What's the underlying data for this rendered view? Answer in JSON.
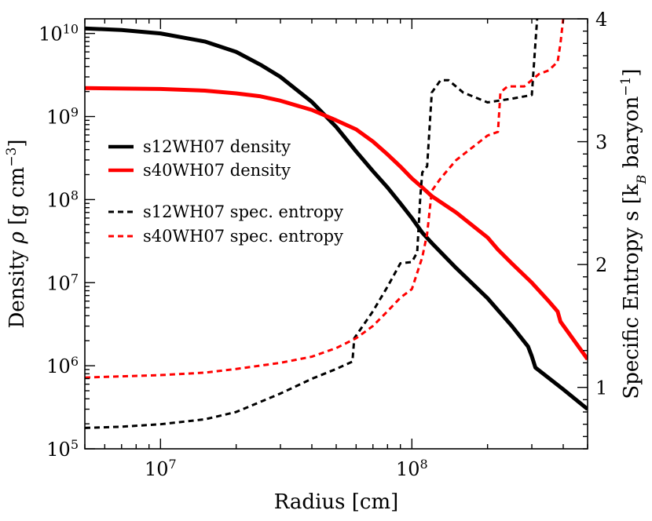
{
  "chart_data": {
    "type": "line",
    "title": "",
    "xlabel": "Radius [cm]",
    "ylabel_left": "Density ρ [g cm⁻³]",
    "ylabel_left_parts": {
      "pre": "Density ",
      "sym": "ρ",
      "mid": " [g cm",
      "exp": "−3",
      "post": "]"
    },
    "ylabel_right": "Specific Entropy s [k_B baryon⁻¹]",
    "ylabel_right_parts": {
      "pre": "Specific Entropy s [k",
      "sub": "B",
      "mid": " baryon",
      "exp": "−1",
      "post": "]"
    },
    "xscale": "log",
    "yscale_left": "log",
    "xlim": [
      5000000,
      500000000
    ],
    "ylim_left": [
      100000,
      15000000000
    ],
    "ylim_right": [
      0.5,
      4.0
    ],
    "x_ticks": [
      {
        "value": 10000000,
        "base": "10",
        "exp": "7"
      },
      {
        "value": 100000000,
        "base": "10",
        "exp": "8"
      }
    ],
    "y_left_ticks": [
      {
        "value": 100000,
        "base": "10",
        "exp": "5"
      },
      {
        "value": 1000000,
        "base": "10",
        "exp": "6"
      },
      {
        "value": 10000000,
        "base": "10",
        "exp": "7"
      },
      {
        "value": 100000000,
        "base": "10",
        "exp": "8"
      },
      {
        "value": 1000000000,
        "base": "10",
        "exp": "9"
      },
      {
        "value": 10000000000,
        "base": "10",
        "exp": "10"
      }
    ],
    "y_right_ticks": [
      {
        "value": 1,
        "label": "1"
      },
      {
        "value": 2,
        "label": "2"
      },
      {
        "value": 3,
        "label": "3"
      },
      {
        "value": 4,
        "label": "4"
      }
    ],
    "legend_position": "center-left",
    "legend": [
      {
        "label": "s12WH07 density",
        "color": "#000000",
        "dash": "solid"
      },
      {
        "label": "s40WH07 density",
        "color": "#ff0000",
        "dash": "solid"
      },
      {
        "label": "s12WH07 spec. entropy",
        "color": "#000000",
        "dash": "dashed"
      },
      {
        "label": "s40WH07 spec. entropy",
        "color": "#ff0000",
        "dash": "dashed"
      }
    ],
    "series": [
      {
        "name": "s12WH07 density",
        "axis": "left",
        "color": "#000000",
        "dash": "solid",
        "x": [
          5000000,
          7000000,
          10000000,
          15000000,
          20000000,
          25000000,
          30000000,
          40000000,
          50000000,
          60000000,
          70000000,
          80000000,
          90000000,
          100000000,
          110000000,
          120000000,
          150000000,
          200000000,
          250000000,
          290000000,
          300000000,
          310000000,
          400000000,
          500000000
        ],
        "y": [
          11500000000,
          11000000000,
          10000000000,
          8000000000,
          6000000000,
          4200000000,
          3000000000,
          1500000000,
          750000000,
          380000000,
          220000000,
          140000000,
          90000000,
          60000000,
          40000000,
          30000000,
          15000000,
          6500000,
          3000000,
          1700000,
          1300000,
          950000,
          520000,
          300000
        ]
      },
      {
        "name": "s40WH07 density",
        "axis": "left",
        "color": "#ff0000",
        "dash": "solid",
        "x": [
          5000000,
          10000000,
          15000000,
          20000000,
          25000000,
          30000000,
          40000000,
          50000000,
          60000000,
          70000000,
          80000000,
          90000000,
          100000000,
          110000000,
          120000000,
          150000000,
          200000000,
          220000000,
          250000000,
          300000000,
          350000000,
          380000000,
          390000000,
          500000000
        ],
        "y": [
          2200000000,
          2150000000,
          2050000000,
          1900000000,
          1750000000,
          1550000000,
          1200000000,
          900000000,
          700000000,
          500000000,
          350000000,
          250000000,
          180000000,
          140000000,
          110000000,
          70000000,
          35000000,
          25000000,
          17000000,
          10000000,
          6000000,
          4500000,
          3400000,
          1200000
        ]
      },
      {
        "name": "s12WH07 spec. entropy",
        "axis": "right",
        "color": "#000000",
        "dash": "dashed",
        "x": [
          5000000,
          7000000,
          10000000,
          15000000,
          20000000,
          30000000,
          40000000,
          50000000,
          58000000,
          59000000,
          70000000,
          80000000,
          90000000,
          100000000,
          105000000,
          108000000,
          110000000,
          115000000,
          120000000,
          130000000,
          140000000,
          160000000,
          200000000,
          250000000,
          300000000,
          310000000,
          315000000
        ],
        "y": [
          0.67,
          0.68,
          0.7,
          0.74,
          0.8,
          0.95,
          1.07,
          1.15,
          1.21,
          1.4,
          1.62,
          1.82,
          2.01,
          2.02,
          2.1,
          2.55,
          2.75,
          2.8,
          3.4,
          3.5,
          3.5,
          3.4,
          3.32,
          3.35,
          3.38,
          3.8,
          4.0
        ]
      },
      {
        "name": "s40WH07 spec. entropy",
        "axis": "right",
        "color": "#ff0000",
        "dash": "dashed",
        "x": [
          5000000,
          7000000,
          10000000,
          15000000,
          20000000,
          30000000,
          40000000,
          50000000,
          60000000,
          70000000,
          80000000,
          90000000,
          100000000,
          110000000,
          115000000,
          120000000,
          130000000,
          150000000,
          200000000,
          220000000,
          225000000,
          240000000,
          280000000,
          320000000,
          350000000,
          380000000,
          390000000,
          400000000
        ],
        "y": [
          1.08,
          1.09,
          1.1,
          1.12,
          1.15,
          1.2,
          1.25,
          1.32,
          1.4,
          1.5,
          1.62,
          1.73,
          1.8,
          2.06,
          2.25,
          2.6,
          2.7,
          2.85,
          3.05,
          3.08,
          3.4,
          3.45,
          3.45,
          3.55,
          3.58,
          3.65,
          3.8,
          4.0
        ]
      }
    ]
  }
}
